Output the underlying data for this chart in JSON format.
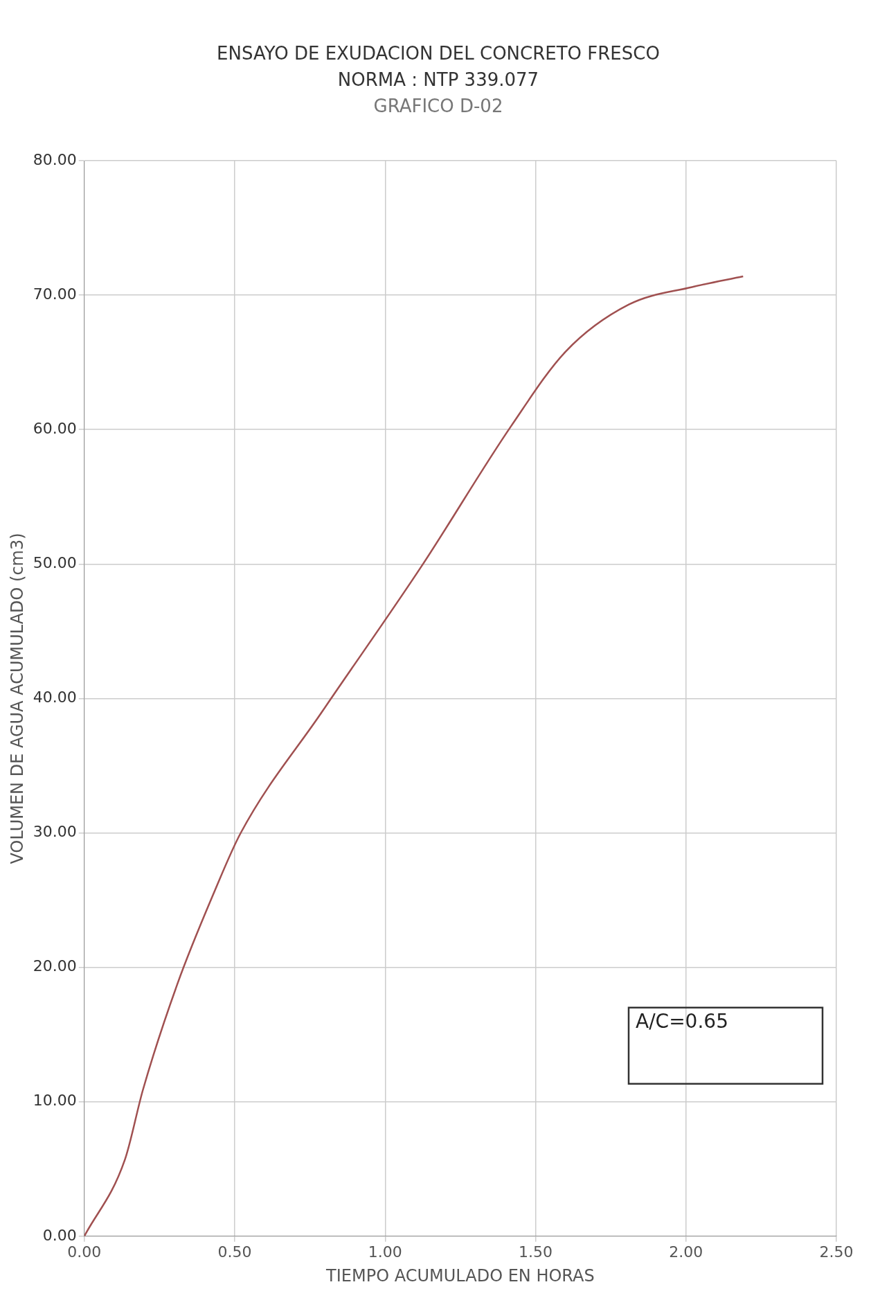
{
  "chart_data": {
    "type": "line",
    "title": "ENSAYO DE EXUDACION DEL CONCRETO FRESCO",
    "subtitle": "NORMA : NTP 339.077",
    "xlabel": "TIEMPO ACUMULADO EN HORAS",
    "ylabel": "VOLUMEN DE AGUA ACUMULADO (cm3)",
    "annotations": [
      "GRAFICO D-02",
      "A/C=0.65"
    ],
    "x": [
      0,
      0.135,
      0.195,
      0.31,
      0.43,
      0.52,
      0.79,
      1.12,
      1.42,
      1.6,
      1.81,
      2.02,
      2.19
    ],
    "series": [
      {
        "color": "#a05050",
        "values": [
          0,
          5.7,
          10.9,
          18.8,
          25.5,
          30,
          39,
          49.8,
          60.3,
          65.8,
          69.3,
          70.6,
          71.4
        ]
      }
    ],
    "xlim": [
      0,
      2.5
    ],
    "xticks": [
      {
        "value": 0,
        "label": "0.00"
      },
      {
        "value": 0.5,
        "label": "0.50"
      },
      {
        "value": 1,
        "label": "1.00"
      },
      {
        "value": 1.5,
        "label": "1.50"
      },
      {
        "value": 2,
        "label": "2.00"
      },
      {
        "value": 2.5,
        "label": "2.50"
      }
    ],
    "ylim": [
      0,
      80
    ],
    "yticks": [
      {
        "value": 0,
        "label": "0.00"
      },
      {
        "value": 10,
        "label": "10.00"
      },
      {
        "value": 20,
        "label": "20.00"
      },
      {
        "value": 30,
        "label": "30.00"
      },
      {
        "value": 40,
        "label": "40.00"
      },
      {
        "value": 50,
        "label": "50.00"
      },
      {
        "value": 60,
        "label": "60.00"
      },
      {
        "value": 70,
        "label": "70.00"
      },
      {
        "value": 80,
        "label": "80.00"
      }
    ],
    "grid": true,
    "legend": false,
    "marker": "none",
    "line_style": "solid"
  }
}
